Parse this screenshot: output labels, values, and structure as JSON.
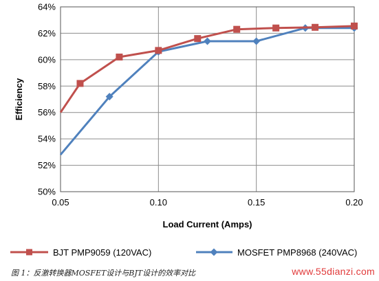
{
  "chart_data": {
    "type": "line",
    "title": "",
    "xlabel": "Load Current (Amps)",
    "ylabel": "Efficiency",
    "xlim": [
      0.05,
      0.2
    ],
    "ylim": [
      50,
      64
    ],
    "x_ticks": [
      "0.05",
      "0.10",
      "0.15",
      "0.20"
    ],
    "y_ticks": [
      "50%",
      "52%",
      "54%",
      "56%",
      "58%",
      "60%",
      "62%",
      "64%"
    ],
    "grid": "vertical and horizontal major gridlines",
    "legend_position": "bottom",
    "series": [
      {
        "name": "BJT PMP9059 (120VAC)",
        "color": "#c0504d",
        "marker": "square",
        "x": [
          0.05,
          0.06,
          0.08,
          0.1,
          0.12,
          0.14,
          0.16,
          0.18,
          0.2
        ],
        "y": [
          56.0,
          58.2,
          60.2,
          60.7,
          61.6,
          62.3,
          62.4,
          62.45,
          62.55
        ]
      },
      {
        "name": "MOSFET PMP8968 (240VAC)",
        "color": "#4f81bd",
        "marker": "diamond",
        "x": [
          0.05,
          0.075,
          0.1,
          0.125,
          0.15,
          0.175,
          0.2
        ],
        "y": [
          52.8,
          57.2,
          60.6,
          61.4,
          61.4,
          62.4,
          62.4
        ]
      }
    ]
  },
  "caption": {
    "text": "图 1：反激转换器MOSFET设计与BJT设计的效率对比",
    "watermark": "www.55dianzi.com"
  }
}
